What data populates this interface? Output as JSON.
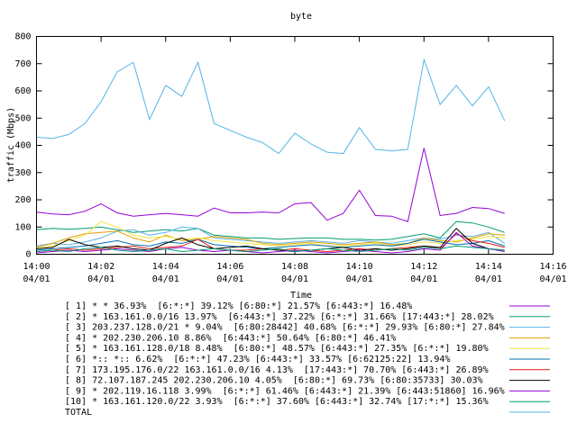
{
  "chart_data": {
    "type": "line",
    "title": "byte",
    "x_label": "Time",
    "y_label": "traffic (Mbps)",
    "x": [
      840,
      840.5,
      841,
      841.5,
      842,
      842.5,
      843,
      843.5,
      844,
      844.5,
      845,
      845.5,
      846,
      846.5,
      847,
      847.5,
      848,
      848.5,
      849,
      849.5,
      850,
      850.5,
      851,
      851.5,
      852,
      852.5,
      853,
      853.5,
      854,
      854.5
    ],
    "xlim": [
      840,
      856
    ],
    "xticks": [
      {
        "value": 840,
        "label": "14:00\n04/01"
      },
      {
        "value": 842,
        "label": "14:02\n04/01"
      },
      {
        "value": 844,
        "label": "14:04\n04/01"
      },
      {
        "value": 846,
        "label": "14:06\n04/01"
      },
      {
        "value": 848,
        "label": "14:08\n04/01"
      },
      {
        "value": 850,
        "label": "14:10\n04/01"
      },
      {
        "value": 852,
        "label": "14:12\n04/01"
      },
      {
        "value": 854,
        "label": "14:14\n04/01"
      },
      {
        "value": 856,
        "label": "14:16\n04/01"
      }
    ],
    "ylim": [
      0,
      800
    ],
    "yticks": [
      0,
      100,
      200,
      300,
      400,
      500,
      600,
      700,
      800
    ],
    "series": [
      {
        "name": "[ 1] * * 36.93%  [6:*:*] 39.12% [6:80:*] 21.57% [6:443:*] 16.48%",
        "color": "#9400d3",
        "values": [
          155,
          148,
          145,
          158,
          185,
          152,
          140,
          145,
          150,
          145,
          140,
          170,
          152,
          152,
          155,
          152,
          185,
          190,
          125,
          150,
          235,
          142,
          140,
          120,
          390,
          142,
          150,
          172,
          168,
          150
        ]
      },
      {
        "name": "[ 2] * 163.161.0.0/16 13.97%  [6:443:*] 37.22% [6:*:*] 31.66% [17:443:*] 28.02%",
        "color": "#009e73",
        "values": [
          90,
          95,
          92,
          95,
          100,
          90,
          80,
          85,
          90,
          85,
          95,
          70,
          65,
          60,
          60,
          55,
          58,
          60,
          60,
          55,
          55,
          52,
          55,
          65,
          75,
          60,
          120,
          115,
          100,
          80
        ]
      },
      {
        "name": "[ 3] 203.237.128.0/21 * 9.04%  [6:80:28442] 40.68% [6:*:*] 29.93% [6:80:*] 27.84%",
        "color": "#56b4e9",
        "values": [
          30,
          40,
          35,
          45,
          60,
          85,
          90,
          70,
          80,
          100,
          95,
          60,
          55,
          50,
          45,
          40,
          45,
          50,
          45,
          40,
          50,
          45,
          40,
          50,
          60,
          55,
          70,
          65,
          80,
          40
        ]
      },
      {
        "name": "[ 4] * 202.230.206.10 8.86%  [6:443:*] 50.64% [6:80:*] 46.41%",
        "color": "#e69f00",
        "values": [
          25,
          40,
          60,
          75,
          80,
          85,
          60,
          45,
          70,
          50,
          55,
          65,
          60,
          55,
          40,
          35,
          40,
          45,
          40,
          35,
          40,
          45,
          35,
          40,
          60,
          50,
          45,
          60,
          75,
          70
        ]
      },
      {
        "name": "[ 5] * 163.161.128.0/18 8.48%  [6:80:*] 48.57% [6:443:*] 27.35% [6:*:*] 19.80%",
        "color": "#f0e442",
        "values": [
          20,
          30,
          50,
          70,
          120,
          100,
          70,
          60,
          65,
          55,
          60,
          50,
          45,
          40,
          35,
          30,
          35,
          40,
          30,
          30,
          35,
          40,
          30,
          35,
          45,
          40,
          50,
          55,
          65,
          60
        ]
      },
      {
        "name": "[ 6] *:: *:: 6.62%  [6:*:*] 47.23% [6:443:*] 33.57% [6:62125:22] 13.94%",
        "color": "#0072b2",
        "values": [
          15,
          20,
          25,
          30,
          40,
          50,
          35,
          30,
          45,
          40,
          55,
          35,
          30,
          25,
          20,
          25,
          30,
          35,
          30,
          25,
          30,
          35,
          30,
          40,
          55,
          45,
          35,
          40,
          50,
          30
        ]
      },
      {
        "name": "[ 7] 173.195.176.0/22 163.161.0.0/16 4.13%  [17:443:*] 70.70% [6:443:*] 26.89%",
        "color": "#e51e10",
        "values": [
          10,
          15,
          20,
          15,
          20,
          25,
          30,
          20,
          25,
          30,
          55,
          20,
          15,
          15,
          20,
          15,
          20,
          15,
          10,
          15,
          20,
          15,
          20,
          25,
          30,
          20,
          75,
          50,
          40,
          25
        ]
      },
      {
        "name": "[ 8] 72.107.187.245 202.230.206.10 4.05%  [6:80:*] 69.73% [6:80:35733] 30.03%",
        "color": "#000000",
        "values": [
          20,
          25,
          55,
          35,
          25,
          30,
          20,
          15,
          40,
          60,
          35,
          20,
          25,
          30,
          20,
          15,
          10,
          15,
          20,
          25,
          15,
          20,
          15,
          20,
          30,
          25,
          95,
          40,
          20,
          15
        ]
      },
      {
        "name": "[ 9] * 202.119.16.118 3.99%  [6:*:*] 61.46% [6:443:*] 21.39% [6:443:51860] 16.96%",
        "color": "#9400d3",
        "values": [
          5,
          10,
          15,
          10,
          15,
          20,
          15,
          10,
          20,
          25,
          15,
          10,
          15,
          10,
          5,
          10,
          15,
          10,
          5,
          10,
          15,
          10,
          5,
          10,
          20,
          15,
          80,
          30,
          20,
          10
        ]
      },
      {
        "name": "[10] * 163.161.120.0/22 3.93%  [6:*:*] 37.60% [6:443:*] 32.74% [17:*:*] 15.36%",
        "color": "#009e73",
        "values": [
          10,
          15,
          10,
          20,
          25,
          15,
          10,
          15,
          20,
          10,
          15,
          20,
          15,
          10,
          15,
          20,
          10,
          15,
          20,
          15,
          10,
          15,
          20,
          15,
          25,
          20,
          30,
          25,
          20,
          15
        ]
      },
      {
        "name": "TOTAL",
        "color": "#56b4e9",
        "values": [
          430,
          425,
          440,
          480,
          560,
          670,
          705,
          495,
          620,
          580,
          705,
          480,
          455,
          430,
          410,
          370,
          445,
          405,
          375,
          370,
          465,
          385,
          380,
          385,
          715,
          550,
          620,
          545,
          615,
          490
        ]
      }
    ]
  }
}
